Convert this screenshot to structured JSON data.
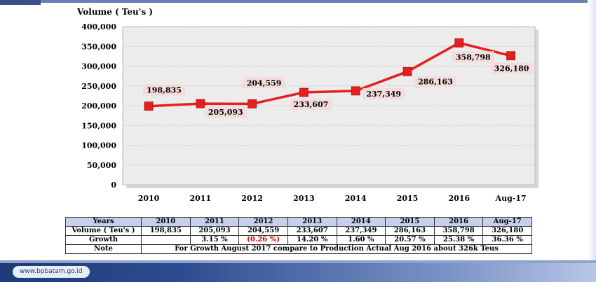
{
  "chart_data": {
    "type": "line",
    "ylabel": "Volume ( Teu's )",
    "categories": [
      "2010",
      "2011",
      "2012",
      "2013",
      "2014",
      "2015",
      "2016",
      "Aug-17"
    ],
    "values": [
      198835,
      205093,
      204559,
      233607,
      237349,
      286163,
      358798,
      326180
    ],
    "data_labels": [
      "198,835",
      "205,093",
      "204,559",
      "233,607",
      "237,349",
      "286,163",
      "358,798",
      "326,180"
    ],
    "ylim": [
      0,
      400000
    ],
    "yticks": [
      0,
      50000,
      100000,
      150000,
      200000,
      250000,
      300000,
      350000,
      400000
    ],
    "ytick_labels": [
      "0",
      "50,000",
      "100,000",
      "150,000",
      "200,000",
      "250,000",
      "300,000",
      "350,000",
      "400,000"
    ],
    "grid": true,
    "line_color": "#e41f1f",
    "marker_color": "#e41f1f",
    "plot_background": "#ececec"
  },
  "table": {
    "header": [
      "Years",
      "2010",
      "2011",
      "2012",
      "2013",
      "2014",
      "2015",
      "2016",
      "Aug-17"
    ],
    "volume_label": "Volume ( Teu's )",
    "volume": [
      "198,835",
      "205,093",
      "204,559",
      "233,607",
      "237,349",
      "286,163",
      "358,798",
      "326,180"
    ],
    "growth_label": "Growth",
    "growth": [
      "",
      "3.15 %",
      "(0.26 %)",
      "14.20 %",
      "1.60 %",
      "20.57 %",
      "25.38 %",
      "36.36 %"
    ],
    "note_label": "Note",
    "note_text": "For Growth August 2017 compare to Production Actual Aug 2016  about 326k Teus"
  },
  "footer": {
    "website": "www.bpbatam.go.id"
  }
}
